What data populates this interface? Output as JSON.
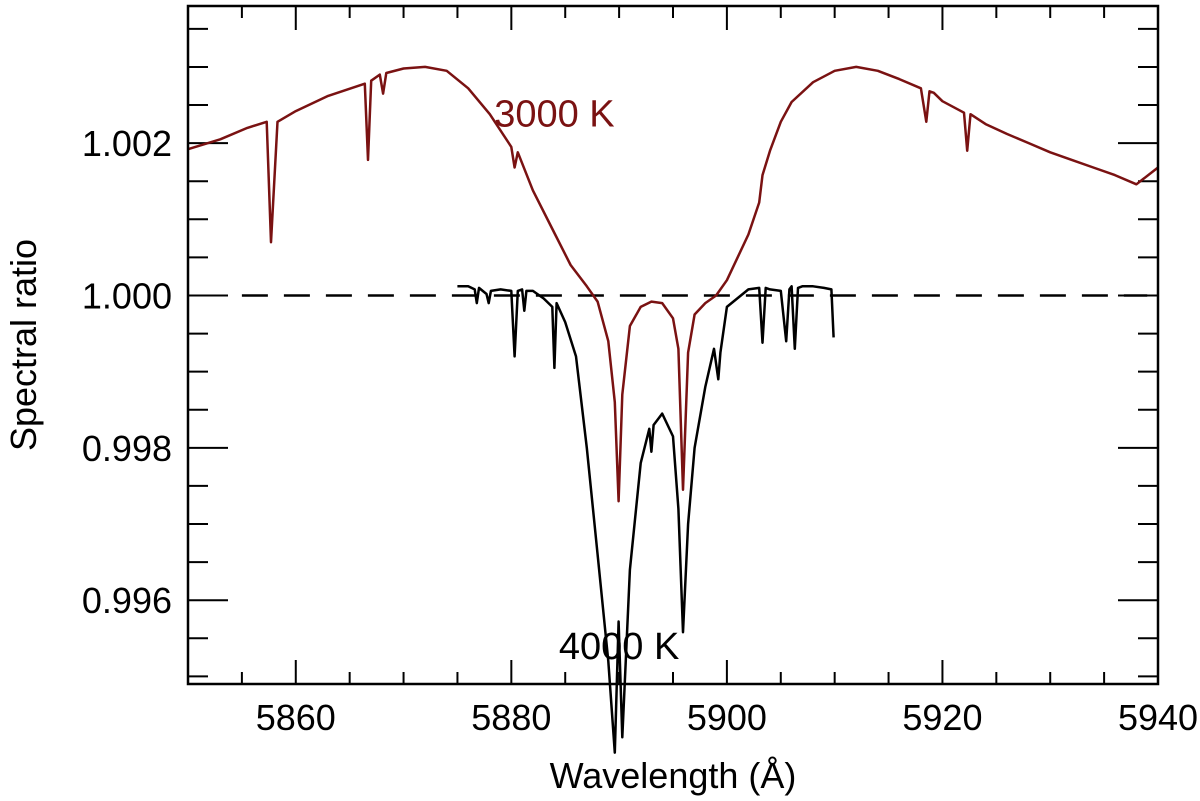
{
  "chart_data": {
    "type": "line",
    "title": "",
    "xlabel": "Wavelength (Å)",
    "ylabel": "Spectral ratio",
    "xlim": [
      5850,
      5940
    ],
    "ylim": [
      0.9949,
      1.0038
    ],
    "x_ticks": [
      5860,
      5880,
      5900,
      5920,
      5940
    ],
    "x_tick_labels": [
      "5860",
      "5880",
      "5900",
      "5920",
      "5940"
    ],
    "y_ticks": [
      0.996,
      0.998,
      1.0,
      1.002
    ],
    "y_tick_labels": [
      "0.996",
      "0.998",
      "1.000",
      "1.002"
    ],
    "reference_line": {
      "y": 1.0,
      "x_range": [
        5855,
        5939
      ],
      "style": "dashed"
    },
    "series": [
      {
        "name": "3000 K",
        "label": "3000 K",
        "color": "#7a1212",
        "x": [
          5850,
          5853,
          5855.5,
          5857.3,
          5857.7,
          5858.3,
          5860,
          5863,
          5866.4,
          5866.7,
          5867,
          5867.8,
          5868.1,
          5868.4,
          5870,
          5872,
          5874,
          5876,
          5878,
          5880,
          5880.3,
          5880.6,
          5882,
          5884,
          5885.5,
          5887,
          5888,
          5889,
          5889.6,
          5889.95,
          5890.3,
          5891,
          5892,
          5893,
          5894,
          5895,
          5895.5,
          5895.93,
          5896.4,
          5897,
          5898,
          5899,
          5900,
          5902,
          5903,
          5903.3,
          5904,
          5905,
          5906,
          5908,
          5910,
          5912,
          5914,
          5916,
          5918,
          5918.5,
          5918.8,
          5919.2,
          5920,
          5922,
          5922.3,
          5922.6,
          5924,
          5926,
          5928,
          5930,
          5932,
          5934,
          5936,
          5938,
          5940
        ],
        "y": [
          1.00192,
          1.00205,
          1.0022,
          1.00228,
          1.0007,
          1.00228,
          1.00242,
          1.00262,
          1.00278,
          1.00178,
          1.00282,
          1.0029,
          1.00265,
          1.00292,
          1.00298,
          1.003,
          1.00295,
          1.00272,
          1.00238,
          1.00195,
          1.00168,
          1.00188,
          1.00138,
          1.00082,
          1.0004,
          1.00012,
          0.99992,
          0.9994,
          0.9986,
          0.9973,
          0.9987,
          0.9996,
          0.99985,
          0.99992,
          0.9999,
          0.9997,
          0.9993,
          0.99745,
          0.99925,
          0.99975,
          0.9999,
          1.0,
          1.0002,
          1.0008,
          1.00122,
          1.00158,
          1.0019,
          1.00228,
          1.00254,
          1.0028,
          1.00295,
          1.003,
          1.00295,
          1.00284,
          1.00272,
          1.00228,
          1.00268,
          1.00266,
          1.00255,
          1.0024,
          1.0019,
          1.00238,
          1.00225,
          1.00212,
          1.002,
          1.00188,
          1.00178,
          1.00168,
          1.00158,
          1.00146,
          1.00168
        ]
      },
      {
        "name": "4000 K",
        "label": "4000 K",
        "color": "#000000",
        "x": [
          5875,
          5876,
          5876.6,
          5876.8,
          5877,
          5877.7,
          5877.9,
          5878.1,
          5879,
          5880,
          5880.3,
          5880.6,
          5881,
          5881.2,
          5881.4,
          5882,
          5883,
          5883.8,
          5884.0,
          5884.2,
          5885,
          5886,
          5887,
          5888,
          5889,
          5889.6,
          5889.95,
          5890.3,
          5891,
          5892,
          5892.8,
          5893,
          5893.2,
          5894,
          5895,
          5895.5,
          5895.93,
          5896.4,
          5897,
          5898,
          5898.8,
          5899.2,
          5899.4,
          5900,
          5902,
          5903,
          5903.3,
          5903.6,
          5904,
          5905,
          5905.5,
          5905.8,
          5906,
          5906.3,
          5906.6,
          5907,
          5908,
          5909,
          5909.7,
          5909.9
        ],
        "y": [
          1.00012,
          1.00012,
          1.00008,
          0.9999,
          1.0001,
          1.00002,
          0.9999,
          1.00006,
          1.00008,
          1.00006,
          0.9992,
          1.00006,
          1.00008,
          0.9998,
          1.00006,
          1.00006,
          0.99996,
          0.99985,
          0.99905,
          0.9999,
          0.99965,
          0.9992,
          0.998,
          0.9966,
          0.9952,
          0.994,
          0.99572,
          0.9942,
          0.9964,
          0.9978,
          0.99825,
          0.99795,
          0.9983,
          0.99845,
          0.99815,
          0.9972,
          0.99558,
          0.997,
          0.998,
          0.9988,
          0.9993,
          0.9989,
          0.99925,
          0.99985,
          1.00008,
          1.0001,
          0.99938,
          1.0001,
          1.00008,
          1.00006,
          0.9994,
          1.00008,
          1.00012,
          0.9993,
          1.0001,
          1.00012,
          1.00012,
          1.0001,
          1.00008,
          0.99945
        ]
      }
    ],
    "annotations": [
      {
        "text": "3000 K",
        "series": "3000 K",
        "x": 5884,
        "y": 1.00222
      },
      {
        "text": "4000 K",
        "series": "4000 K",
        "x": 5890,
        "y": 0.99523
      }
    ]
  }
}
